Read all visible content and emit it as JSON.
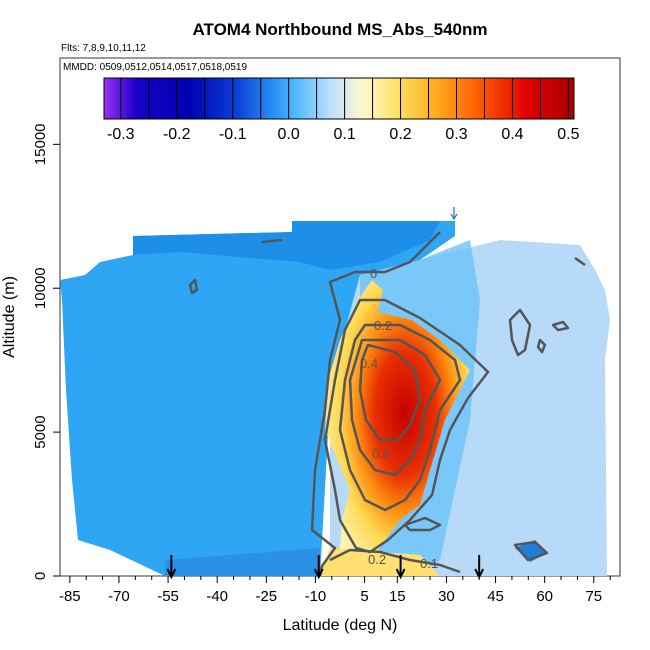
{
  "chart_data": {
    "type": "heatmap",
    "title": "ATOM4 Northbound MS_Abs_540nm",
    "subtitle_flights": "Flts: 7,8,9,10,11,12",
    "subtitle_dates": "MMDD: 0509,0512,0514,0517,0518,0519",
    "xlabel": "Latitude (deg N)",
    "ylabel": "Altitude (m)",
    "xlim": [
      -88,
      83
    ],
    "ylim": [
      0,
      18000
    ],
    "x_ticks": [
      -85,
      -70,
      -55,
      -40,
      -25,
      -10,
      5,
      15,
      30,
      45,
      60,
      75
    ],
    "y_ticks": [
      0,
      5000,
      10000,
      15000
    ],
    "colorbar": {
      "ticks": [
        -0.3,
        -0.2,
        -0.1,
        0.0,
        0.1,
        0.2,
        0.3,
        0.4,
        0.5
      ],
      "tick_labels": [
        "-0.3",
        "-0.2",
        "-0.1",
        "0.0",
        "0.1",
        "0.2",
        "0.3",
        "0.4",
        "0.5"
      ],
      "range": [
        -0.33,
        0.51
      ],
      "colors": [
        "#9b2ff2",
        "#1a00c8",
        "#0000b0",
        "#0b3ed6",
        "#2a8ff5",
        "#45b3ff",
        "#b8e0ff",
        "#fff8d0",
        "#ffe36a",
        "#ffb020",
        "#ff5a00",
        "#e00000",
        "#a80000"
      ]
    },
    "contour_labels": [
      "0",
      "0.2",
      "0.4",
      "0.6",
      "0.2",
      "0.1"
    ],
    "profile_markers_lat": [
      -54,
      -9,
      16,
      40
    ]
  }
}
